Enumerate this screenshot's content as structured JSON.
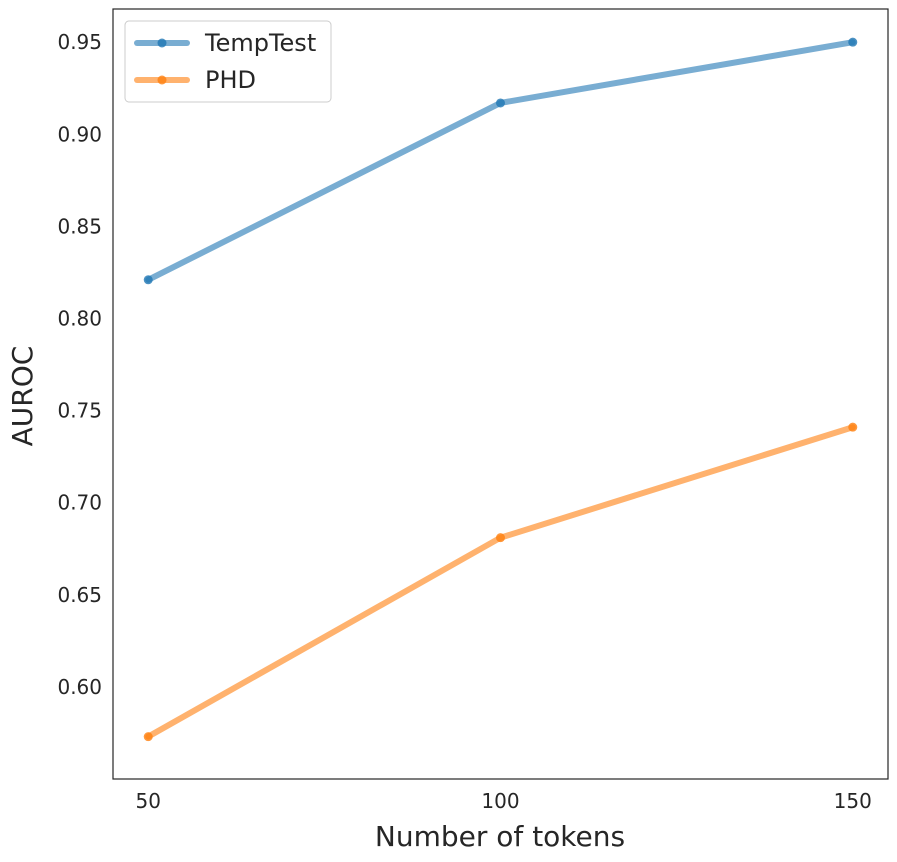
{
  "chart_data": {
    "type": "line",
    "title": "",
    "xlabel": "Number of tokens",
    "ylabel": "AUROC",
    "x": [
      50,
      100,
      150
    ],
    "x_tick_labels": [
      "50",
      "100",
      "150"
    ],
    "y_tick_labels": [
      "0.60",
      "0.65",
      "0.70",
      "0.75",
      "0.80",
      "0.85",
      "0.90",
      "0.95"
    ],
    "y_ticks": [
      0.6,
      0.65,
      0.7,
      0.75,
      0.8,
      0.85,
      0.9,
      0.95
    ],
    "xlim": [
      45,
      155
    ],
    "ylim": [
      0.55,
      0.968
    ],
    "grid": false,
    "legend_position": "top-left",
    "series": [
      {
        "name": "TempTest",
        "color": "#1f77b4",
        "values": [
          0.821,
          0.917,
          0.95
        ]
      },
      {
        "name": "PHD",
        "color": "#ff7f0e",
        "values": [
          0.573,
          0.681,
          0.741
        ]
      }
    ]
  }
}
